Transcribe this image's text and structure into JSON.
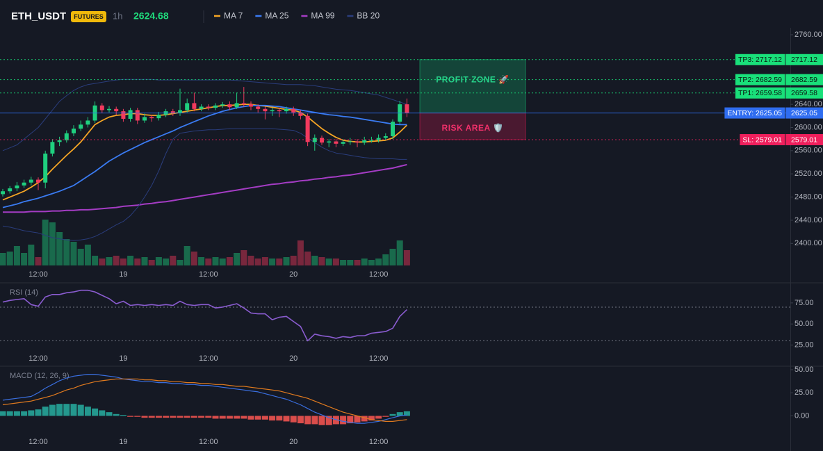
{
  "header": {
    "symbol": "ETH_USDT",
    "badge": "FUTURES",
    "interval": "1h",
    "price": 2624.68
  },
  "chart_data": [
    {
      "type": "candlestick",
      "categories": [
        null,
        null,
        null,
        null,
        null,
        "12:00",
        null,
        null,
        null,
        null,
        null,
        null,
        null,
        null,
        null,
        null,
        null,
        "19",
        null,
        null,
        null,
        null,
        null,
        null,
        null,
        null,
        null,
        null,
        null,
        "12:00",
        null,
        null,
        null,
        null,
        null,
        null,
        null,
        null,
        null,
        null,
        null,
        "20",
        null,
        null,
        null,
        null,
        null,
        null,
        null,
        null,
        null,
        null,
        null,
        "12:00",
        null,
        null,
        null,
        null
      ],
      "open": [
        2485,
        2490,
        2495,
        2500,
        2505,
        2510,
        2505,
        2555,
        2575,
        2578,
        2590,
        2598,
        2605,
        2612,
        2638,
        2630,
        2632,
        2628,
        2615,
        2630,
        2612,
        2618,
        2616,
        2622,
        2628,
        2625,
        2630,
        2642,
        2632,
        2636,
        2634,
        2638,
        2640,
        2635,
        2642,
        2640,
        2636,
        2632,
        2628,
        2630,
        2628,
        2632,
        2626,
        2620,
        2575,
        2582,
        2574,
        2576,
        2572,
        2575,
        2576,
        2574,
        2578,
        2578,
        2582,
        2585,
        2610,
        2640
      ],
      "high": [
        2494,
        2499,
        2506,
        2510,
        2515,
        2514,
        2560,
        2580,
        2584,
        2595,
        2604,
        2612,
        2618,
        2645,
        2642,
        2637,
        2636,
        2632,
        2634,
        2634,
        2624,
        2622,
        2627,
        2632,
        2632,
        2667,
        2650,
        2660,
        2640,
        2640,
        2642,
        2644,
        2645,
        2660,
        2670,
        2645,
        2640,
        2636,
        2634,
        2634,
        2636,
        2636,
        2630,
        2624,
        2588,
        2586,
        2580,
        2580,
        2580,
        2582,
        2580,
        2584,
        2584,
        2588,
        2590,
        2614,
        2646,
        2650
      ],
      "low": [
        2481,
        2486,
        2490,
        2496,
        2500,
        2492,
        2495,
        2550,
        2568,
        2574,
        2585,
        2594,
        2600,
        2608,
        2625,
        2626,
        2622,
        2610,
        2610,
        2606,
        2608,
        2610,
        2612,
        2618,
        2620,
        2620,
        2626,
        2628,
        2628,
        2630,
        2630,
        2634,
        2630,
        2632,
        2636,
        2630,
        2626,
        2614,
        2620,
        2618,
        2624,
        2620,
        2614,
        2568,
        2560,
        2570,
        2566,
        2566,
        2568,
        2570,
        2566,
        2570,
        2574,
        2574,
        2578,
        2580,
        2606,
        2618
      ],
      "close": [
        2490,
        2495,
        2500,
        2505,
        2510,
        2505,
        2555,
        2575,
        2578,
        2590,
        2598,
        2605,
        2612,
        2638,
        2630,
        2632,
        2628,
        2615,
        2630,
        2612,
        2618,
        2616,
        2622,
        2628,
        2625,
        2630,
        2642,
        2632,
        2636,
        2634,
        2638,
        2640,
        2635,
        2642,
        2640,
        2636,
        2632,
        2628,
        2630,
        2628,
        2632,
        2626,
        2620,
        2575,
        2582,
        2574,
        2576,
        2572,
        2575,
        2576,
        2574,
        2578,
        2578,
        2582,
        2585,
        2610,
        2640,
        2624.68
      ],
      "up_color": "#1fcf7f",
      "down_color": "#f23a5e",
      "volume": [
        18,
        20,
        28,
        18,
        30,
        12,
        66,
        62,
        48,
        38,
        34,
        24,
        30,
        14,
        10,
        12,
        14,
        10,
        14,
        10,
        12,
        8,
        12,
        10,
        14,
        8,
        28,
        20,
        12,
        10,
        12,
        10,
        12,
        18,
        22,
        14,
        10,
        12,
        10,
        10,
        12,
        14,
        36,
        20,
        14,
        12,
        10,
        10,
        8,
        8,
        8,
        10,
        8,
        10,
        16,
        24,
        36,
        22
      ],
      "series": [
        {
          "name": "MA 7",
          "color": "#f5a524",
          "values": [
            2475,
            2480,
            2485,
            2490,
            2497,
            2505,
            2515,
            2528,
            2540,
            2552,
            2563,
            2575,
            2590,
            2605,
            2612,
            2618,
            2621,
            2622,
            2624,
            2624,
            2622,
            2621,
            2621,
            2622,
            2624,
            2626,
            2628,
            2630,
            2632,
            2634,
            2636,
            2638,
            2638,
            2639,
            2640,
            2640,
            2638,
            2637,
            2635,
            2633,
            2631,
            2630,
            2626,
            2618,
            2608,
            2598,
            2590,
            2583,
            2578,
            2576,
            2575,
            2575,
            2576,
            2577,
            2578,
            2582,
            2592,
            2604
          ]
        },
        {
          "name": "MA 25",
          "color": "#3a7bf2",
          "values": [
            2462,
            2465,
            2468,
            2472,
            2475,
            2478,
            2482,
            2486,
            2490,
            2495,
            2500,
            2508,
            2516,
            2524,
            2533,
            2542,
            2549,
            2556,
            2562,
            2568,
            2574,
            2579,
            2584,
            2589,
            2594,
            2600,
            2605,
            2610,
            2615,
            2620,
            2624,
            2628,
            2631,
            2634,
            2636,
            2638,
            2638,
            2638,
            2637,
            2636,
            2634,
            2632,
            2630,
            2628,
            2626,
            2624,
            2622,
            2621,
            2619,
            2618,
            2616,
            2614,
            2612,
            2610,
            2608,
            2606,
            2605,
            2605
          ]
        },
        {
          "name": "MA 99",
          "color": "#a43cc4",
          "values": [
            2454,
            2454,
            2454,
            2454,
            2455,
            2455,
            2455,
            2456,
            2456,
            2457,
            2457,
            2458,
            2458,
            2459,
            2460,
            2461,
            2462,
            2464,
            2465,
            2466,
            2468,
            2469,
            2471,
            2472,
            2474,
            2476,
            2478,
            2480,
            2482,
            2484,
            2486,
            2488,
            2490,
            2492,
            2494,
            2496,
            2498,
            2500,
            2502,
            2503,
            2505,
            2506,
            2508,
            2509,
            2511,
            2512,
            2514,
            2515,
            2517,
            2518,
            2520,
            2522,
            2524,
            2526,
            2528,
            2530,
            2533,
            2536
          ]
        },
        {
          "name": "BB 20",
          "color": "#2a3d7c",
          "upper": [
            2560,
            2565,
            2570,
            2580,
            2590,
            2600,
            2615,
            2630,
            2645,
            2655,
            2664,
            2670,
            2674,
            2676,
            2678,
            2680,
            2682,
            2683,
            2683,
            2683,
            2683,
            2683,
            2682,
            2682,
            2682,
            2682,
            2682,
            2682,
            2682,
            2682,
            2682,
            2682,
            2682,
            2681,
            2680,
            2679,
            2678,
            2677,
            2676,
            2675,
            2674,
            2674,
            2674,
            2673,
            2672,
            2670,
            2668,
            2666,
            2665,
            2664,
            2662,
            2660,
            2658,
            2656,
            2652,
            2648,
            2644,
            2640
          ],
          "lower": [
            2430,
            2428,
            2425,
            2422,
            2420,
            2418,
            2414,
            2410,
            2408,
            2406,
            2405,
            2406,
            2408,
            2412,
            2418,
            2425,
            2432,
            2438,
            2448,
            2462,
            2480,
            2500,
            2525,
            2555,
            2580,
            2590,
            2592,
            2594,
            2595,
            2596,
            2596,
            2597,
            2598,
            2598,
            2598,
            2598,
            2598,
            2598,
            2598,
            2597,
            2596,
            2595,
            2590,
            2582,
            2574,
            2566,
            2560,
            2556,
            2554,
            2552,
            2550,
            2548,
            2547,
            2546,
            2546,
            2546,
            2545,
            2545
          ]
        }
      ],
      "levels": [
        {
          "label": "TP3: 2717.12",
          "value": 2717.12,
          "color": "#19e07a",
          "text_color": "#0b1a12",
          "line_style": "dotted"
        },
        {
          "label": "TP2: 2682.59",
          "value": 2682.59,
          "color": "#19e07a",
          "text_color": "#0b1a12",
          "line_style": "dotted"
        },
        {
          "label": "TP1: 2659.58",
          "value": 2659.58,
          "color": "#19e07a",
          "text_color": "#0b1a12",
          "line_style": "dotted"
        },
        {
          "label": "ENTRY: 2625.05",
          "value": 2625.05,
          "color": "#2f6df0",
          "text_color": "#ffffff",
          "line_style": "solid"
        },
        {
          "label": "SL: 2579.01",
          "value": 2579.01,
          "color": "#ef1f5c",
          "text_color": "#ffffff",
          "line_style": "dotted"
        }
      ],
      "zones": [
        {
          "label": "PROFIT ZONE 🚀",
          "range": [
            2625.05,
            2717.12
          ],
          "color": "#12b870",
          "text_color": "#27d38b"
        },
        {
          "label": "RISK AREA 🛡️",
          "range": [
            2579.01,
            2625.05
          ],
          "color": "#d4194f",
          "text_color": "#f0306a"
        }
      ],
      "ylim": [
        2362,
        2772
      ],
      "yticks": [
        {
          "value": 2760,
          "label": "2760.00"
        },
        {
          "value": 2640,
          "label": "2640.00"
        },
        {
          "value": 2600,
          "label": "2600.00"
        },
        {
          "value": 2560,
          "label": "2560.00"
        },
        {
          "value": 2520,
          "label": "2520.00"
        },
        {
          "value": 2480,
          "label": "2480.00"
        },
        {
          "value": 2440,
          "label": "2440.00"
        },
        {
          "value": 2400,
          "label": "2400.00"
        }
      ]
    },
    {
      "type": "line",
      "title": "RSI (14)",
      "color": "#8a5cd0",
      "categories": [
        null,
        null,
        null,
        null,
        null,
        "12:00",
        null,
        null,
        null,
        null,
        null,
        null,
        null,
        null,
        null,
        null,
        null,
        "19",
        null,
        null,
        null,
        null,
        null,
        null,
        null,
        null,
        null,
        null,
        null,
        "12:00",
        null,
        null,
        null,
        null,
        null,
        null,
        null,
        null,
        null,
        null,
        null,
        "20",
        null,
        null,
        null,
        null,
        null,
        null,
        null,
        null,
        null,
        null,
        null,
        "12:00",
        null,
        null,
        null,
        null
      ],
      "values": [
        76,
        78,
        79,
        80,
        73,
        71,
        82,
        85,
        85,
        87,
        88,
        90,
        90,
        88,
        84,
        80,
        74,
        77,
        72,
        73,
        72,
        73,
        72,
        73,
        72,
        77,
        73,
        72,
        73,
        73,
        69,
        70,
        72,
        74,
        69,
        63,
        62,
        62,
        55,
        58,
        59,
        53,
        47,
        30,
        38,
        36,
        35,
        33,
        35,
        34,
        36,
        36,
        39,
        40,
        41,
        45,
        59,
        67
      ],
      "levels": [
        70,
        30
      ],
      "ylim": [
        18,
        98
      ],
      "yticks": [
        {
          "value": 75,
          "label": "75.00"
        },
        {
          "value": 50,
          "label": "50.00"
        },
        {
          "value": 25,
          "label": "25.00"
        }
      ]
    },
    {
      "type": "macd",
      "title": "MACD (12, 26, 9)",
      "categories": [
        null,
        null,
        null,
        null,
        null,
        "12:00",
        null,
        null,
        null,
        null,
        null,
        null,
        null,
        null,
        null,
        null,
        null,
        "19",
        null,
        null,
        null,
        null,
        null,
        null,
        null,
        null,
        null,
        null,
        null,
        "12:00",
        null,
        null,
        null,
        null,
        null,
        null,
        null,
        null,
        null,
        null,
        null,
        "20",
        null,
        null,
        null,
        null,
        null,
        null,
        null,
        null,
        null,
        null,
        null,
        "12:00",
        null,
        null,
        null,
        null
      ],
      "series": [
        {
          "color": "#3a6fe0",
          "values": [
            17,
            18,
            19,
            20,
            21,
            25,
            30,
            34,
            38,
            41,
            43,
            44,
            45,
            45,
            44,
            43,
            42,
            40,
            39,
            38,
            37,
            37,
            36,
            36,
            35,
            35,
            34,
            34,
            33,
            33,
            32,
            31,
            30,
            29,
            28,
            27,
            26,
            24,
            22,
            20,
            18,
            15,
            12,
            8,
            4,
            1,
            -2,
            -4,
            -6,
            -7,
            -8,
            -8,
            -7,
            -6,
            -4,
            -2,
            0,
            1
          ]
        },
        {
          "color": "#e07a1f",
          "values": [
            12,
            13,
            14,
            15,
            16,
            18,
            20,
            22,
            25,
            28,
            30,
            33,
            35,
            37,
            38,
            39,
            40,
            40,
            40,
            40,
            39,
            39,
            38,
            38,
            37,
            37,
            36,
            36,
            35,
            35,
            34,
            34,
            33,
            32,
            32,
            31,
            30,
            29,
            28,
            27,
            25,
            23,
            21,
            19,
            16,
            13,
            10,
            7,
            4,
            2,
            0,
            -2,
            -4,
            -5,
            -6,
            -6,
            -5,
            -4
          ]
        }
      ],
      "histogram": {
        "up_color": "#26a69a",
        "down_color": "#ef5350",
        "values": [
          5,
          5,
          5,
          5,
          6,
          7,
          10,
          12,
          13,
          13,
          13,
          12,
          10,
          8,
          6,
          4,
          2,
          1,
          -1,
          -1,
          -2,
          -2,
          -2,
          -2,
          -2,
          -2,
          -2,
          -2,
          -2,
          -2,
          -3,
          -3,
          -3,
          -3,
          -3,
          -4,
          -4,
          -4,
          -5,
          -5,
          -6,
          -7,
          -8,
          -9,
          -9,
          -10,
          -10,
          -9,
          -9,
          -8,
          -7,
          -6,
          -5,
          -3,
          -1,
          2,
          4,
          5
        ]
      },
      "ylim": [
        -35,
        53
      ],
      "yticks": [
        {
          "value": 50,
          "label": "50.00"
        },
        {
          "value": 25,
          "label": "25.00"
        },
        {
          "value": 0,
          "label": "0.00"
        }
      ]
    }
  ]
}
